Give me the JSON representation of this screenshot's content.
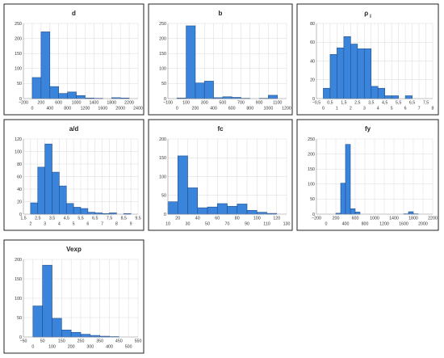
{
  "bar_color": "#3a84dc",
  "chart_data": [
    {
      "type": "bar",
      "title": "d",
      "grid": true,
      "legend": "none",
      "xlim": [
        -200,
        2400
      ],
      "ylim": [
        0,
        250
      ],
      "x_ticks_upper": [
        "−200",
        "200",
        "600",
        "1000",
        "1400",
        "1800",
        "2200"
      ],
      "x_ticks_lower": [
        "0",
        "400",
        "800",
        "1200",
        "1600",
        "2000",
        "2400"
      ],
      "y_ticks": [
        "0",
        "50",
        "100",
        "150",
        "200",
        "250"
      ],
      "bin_edges": [
        0,
        200,
        400,
        600,
        800,
        1000,
        1200,
        1400,
        1600,
        1800,
        2000,
        2200
      ],
      "values": [
        70,
        222,
        40,
        17,
        22,
        10,
        2,
        1,
        0,
        3,
        2
      ]
    },
    {
      "type": "bar",
      "title": "b",
      "grid": true,
      "legend": "none",
      "xlim": [
        -100,
        1200
      ],
      "ylim": [
        0,
        250
      ],
      "x_ticks_upper": [
        "−100",
        "100",
        "300",
        "500",
        "700",
        "900",
        "1100"
      ],
      "x_ticks_lower": [
        "0",
        "200",
        "400",
        "600",
        "800",
        "1000",
        "1200"
      ],
      "y_ticks": [
        "0",
        "50",
        "100",
        "150",
        "200",
        "250"
      ],
      "bin_edges": [
        0,
        100,
        200,
        300,
        400,
        500,
        600,
        700,
        800,
        900,
        1000,
        1100
      ],
      "values": [
        2,
        242,
        52,
        58,
        3,
        6,
        4,
        1,
        0,
        1,
        11
      ]
    },
    {
      "type": "bar",
      "title": "ρ",
      "title_subscript": "l",
      "grid": true,
      "legend": "none",
      "xlim": [
        -0.5,
        8
      ],
      "ylim": [
        0,
        80
      ],
      "x_ticks_upper": [
        "−0,5",
        "0,5",
        "1,5",
        "2,5",
        "3,5",
        "4,5",
        "5,5",
        "6,5",
        "7,5"
      ],
      "x_ticks_lower": [
        "0",
        "1",
        "2",
        "3",
        "4",
        "5",
        "6",
        "7",
        "8"
      ],
      "y_ticks": [
        "0",
        "20",
        "40",
        "60",
        "80"
      ],
      "bin_edges": [
        0,
        0.5,
        1,
        1.5,
        2,
        2.5,
        3,
        3.5,
        4,
        4.5,
        5,
        5.5,
        6,
        6.5,
        7
      ],
      "values": [
        11,
        47,
        54,
        66,
        58,
        53,
        53,
        13,
        11,
        3,
        3,
        0,
        3,
        0
      ]
    },
    {
      "type": "bar",
      "title": "a/d",
      "grid": true,
      "legend": "none",
      "xlim": [
        1.5,
        9.5
      ],
      "ylim": [
        0,
        120
      ],
      "x_ticks_upper": [
        "1,5",
        "2,5",
        "3,5",
        "4,5",
        "5,5",
        "6,5",
        "7,5",
        "8,5",
        "9,5"
      ],
      "x_ticks_lower": [
        "2",
        "3",
        "4",
        "5",
        "6",
        "7",
        "8",
        "9"
      ],
      "y_ticks": [
        "0",
        "20",
        "40",
        "60",
        "80",
        "100",
        "120"
      ],
      "bin_edges": [
        2,
        2.5,
        3,
        3.5,
        4,
        4.5,
        5,
        5.5,
        6,
        6.5,
        7,
        7.5,
        8,
        8.5,
        9
      ],
      "values": [
        18,
        75,
        112,
        67,
        45,
        17,
        11,
        9,
        3,
        2,
        1,
        2,
        0,
        1
      ]
    },
    {
      "type": "bar",
      "title": "fc",
      "grid": true,
      "legend": "none",
      "xlim": [
        10,
        130
      ],
      "ylim": [
        0,
        200
      ],
      "x_ticks_upper": [
        "20",
        "40",
        "60",
        "80",
        "100",
        "120"
      ],
      "x_ticks_lower": [
        "10",
        "30",
        "50",
        "70",
        "90",
        "110",
        "130"
      ],
      "y_ticks": [
        "0",
        "50",
        "100",
        "150",
        "200"
      ],
      "bin_edges": [
        10,
        20,
        30,
        40,
        50,
        60,
        70,
        80,
        90,
        100,
        110,
        120
      ],
      "values": [
        33,
        155,
        70,
        17,
        19,
        28,
        21,
        27,
        10,
        5,
        2
      ]
    },
    {
      "type": "bar",
      "title": "fy",
      "grid": true,
      "legend": "none",
      "xlim": [
        -200,
        2200
      ],
      "ylim": [
        0,
        250
      ],
      "x_ticks_upper": [
        "−200",
        "200",
        "600",
        "1000",
        "1400",
        "1800",
        "2200"
      ],
      "x_ticks_lower": [
        "0",
        "400",
        "800",
        "1200",
        "1600",
        "2000"
      ],
      "y_ticks": [
        "0",
        "50",
        "100",
        "150",
        "200",
        "250"
      ],
      "bin_edges": [
        200,
        300,
        400,
        500,
        600,
        700,
        800,
        900,
        1000,
        1100,
        1200,
        1300,
        1400,
        1500,
        1600,
        1700,
        1800,
        1900
      ],
      "values": [
        3,
        103,
        232,
        18,
        7,
        0,
        0,
        0,
        0,
        0,
        0,
        0,
        0,
        0,
        1,
        8,
        1
      ]
    },
    {
      "type": "bar",
      "title": "Vexp",
      "grid": true,
      "legend": "none",
      "xlim": [
        -50,
        550
      ],
      "ylim": [
        0,
        200
      ],
      "x_ticks_upper": [
        "−50",
        "50",
        "150",
        "250",
        "350",
        "450",
        "550"
      ],
      "x_ticks_lower": [
        "0",
        "100",
        "200",
        "300",
        "400",
        "500"
      ],
      "y_ticks": [
        "0",
        "50",
        "100",
        "150",
        "200"
      ],
      "bin_edges": [
        0,
        50,
        100,
        150,
        200,
        250,
        300,
        350,
        400,
        450
      ],
      "values": [
        80,
        185,
        48,
        18,
        12,
        7,
        4,
        2,
        1
      ]
    }
  ]
}
